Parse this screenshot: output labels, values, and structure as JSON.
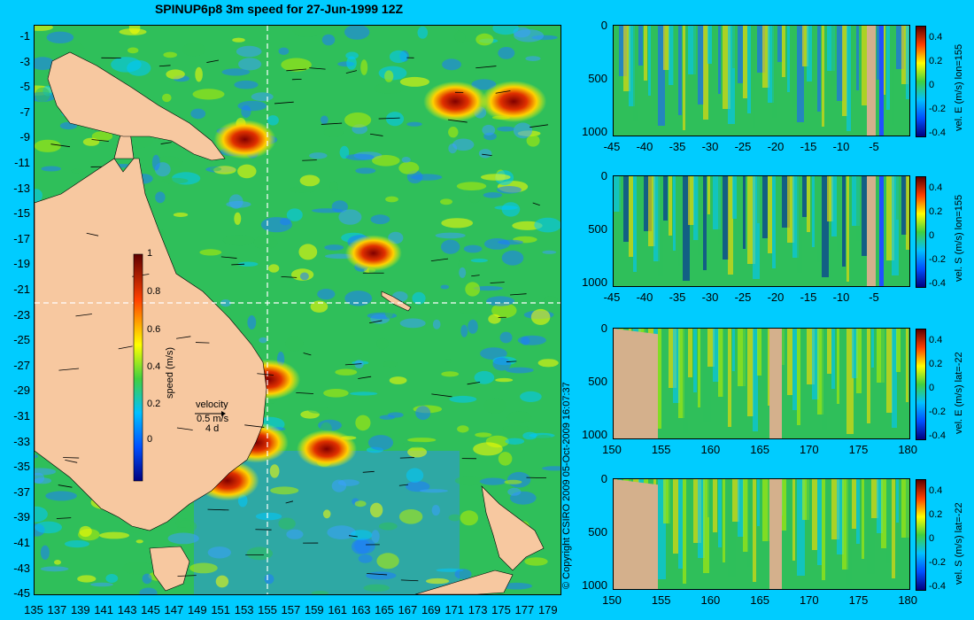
{
  "title": "SPINUP6p8 3m speed for 27-Jun-1999 12Z",
  "copyright": "© Copyright CSIRO 2009   05-Oct-2009 16:07:37",
  "colors": {
    "background": "#00ccff",
    "land": "#f7c8a0",
    "land_sections": "#d4b08c",
    "ocean_base": "#2fbf5a"
  },
  "map": {
    "lat_ticks": [
      "-1",
      "-3",
      "-5",
      "-7",
      "-9",
      "-11",
      "-13",
      "-15",
      "-17",
      "-19",
      "-21",
      "-23",
      "-25",
      "-27",
      "-29",
      "-31",
      "-33",
      "-35",
      "-37",
      "-39",
      "-41",
      "-43",
      "-45"
    ],
    "lon_ticks": [
      "135",
      "137",
      "139",
      "141",
      "143",
      "145",
      "147",
      "149",
      "151",
      "153",
      "155",
      "157",
      "159",
      "161",
      "163",
      "165",
      "167",
      "169",
      "171",
      "173",
      "175",
      "177",
      "179"
    ],
    "colorbar": {
      "label": "speed (m/s)",
      "ticks": [
        "1",
        "0.8",
        "0.6",
        "0.4",
        "0.2",
        "0"
      ]
    },
    "velocity_key": {
      "title": "velocity",
      "speed": "0.5 m/s",
      "duration": "4 d"
    },
    "section_lines": {
      "lon": 155,
      "lat": -22
    }
  },
  "panels": [
    {
      "cbar_label": "vel. E (m/s) lon=155",
      "x_ticks": [
        "-45",
        "-40",
        "-35",
        "-30",
        "-25",
        "-20",
        "-15",
        "-10",
        "-5"
      ],
      "y_ticks": [
        "0",
        "500",
        "1000"
      ],
      "cbar_ticks": [
        "0.4",
        "0.2",
        "0",
        "-0.2",
        "-0.4"
      ]
    },
    {
      "cbar_label": "vel. S (m/s) lon=155",
      "x_ticks": [
        "-45",
        "-40",
        "-35",
        "-30",
        "-25",
        "-20",
        "-15",
        "-10",
        "-5"
      ],
      "y_ticks": [
        "0",
        "500",
        "1000"
      ],
      "cbar_ticks": [
        "0.4",
        "0.2",
        "0",
        "-0.2",
        "-0.4"
      ]
    },
    {
      "cbar_label": "vel. E (m/s) lat=-22",
      "x_ticks": [
        "150",
        "155",
        "160",
        "165",
        "170",
        "175",
        "180"
      ],
      "y_ticks": [
        "0",
        "500",
        "1000"
      ],
      "cbar_ticks": [
        "0.4",
        "0.2",
        "0",
        "-0.2",
        "-0.4"
      ]
    },
    {
      "cbar_label": "vel. S (m/s) lat=-22",
      "x_ticks": [
        "150",
        "155",
        "160",
        "165",
        "170",
        "175",
        "180"
      ],
      "y_ticks": [
        "0",
        "500",
        "1000"
      ],
      "cbar_ticks": [
        "0.4",
        "0.2",
        "0",
        "-0.2",
        "-0.4"
      ]
    }
  ],
  "chart_data": [
    {
      "type": "heatmap",
      "title": "SPINUP6p8 3m speed for 27-Jun-1999 12Z",
      "xlabel": "",
      "ylabel": "",
      "xlim": [
        135,
        180
      ],
      "ylim": [
        -45,
        0
      ],
      "colorbar_label": "speed (m/s)",
      "colorbar_range": [
        0,
        1
      ],
      "features": [
        {
          "lon": 155,
          "lat": -28,
          "speed": 0.9
        },
        {
          "lon": 171,
          "lat": -6,
          "speed": 0.9
        },
        {
          "lon": 176,
          "lat": -6,
          "speed": 0.95
        },
        {
          "lon": 154,
          "lat": -33,
          "speed": 0.9
        },
        {
          "lon": 151.5,
          "lat": -36,
          "speed": 0.9
        },
        {
          "lon": 160,
          "lat": -33.5,
          "speed": 0.8
        },
        {
          "lon": 153,
          "lat": -9,
          "speed": 0.85
        },
        {
          "lon": 164,
          "lat": -18,
          "speed": 0.7
        }
      ]
    },
    {
      "type": "heatmap",
      "xlabel": "",
      "ylabel": "",
      "xlim": [
        -45,
        0
      ],
      "ylim": [
        1050,
        0
      ],
      "colorbar_label": "vel. E (m/s) lon=155",
      "colorbar_range": [
        -0.4,
        0.4
      ]
    },
    {
      "type": "heatmap",
      "xlabel": "",
      "ylabel": "",
      "xlim": [
        -45,
        0
      ],
      "ylim": [
        1050,
        0
      ],
      "colorbar_label": "vel. S (m/s) lon=155",
      "colorbar_range": [
        -0.4,
        0.4
      ]
    },
    {
      "type": "heatmap",
      "xlabel": "",
      "ylabel": "",
      "xlim": [
        150,
        180
      ],
      "ylim": [
        1050,
        0
      ],
      "colorbar_label": "vel. E (m/s) lat=-22",
      "colorbar_range": [
        -0.4,
        0.4
      ]
    },
    {
      "type": "heatmap",
      "xlabel": "",
      "ylabel": "",
      "xlim": [
        150,
        180
      ],
      "ylim": [
        1050,
        0
      ],
      "colorbar_label": "vel. S (m/s) lat=-22",
      "colorbar_range": [
        -0.4,
        0.4
      ]
    }
  ]
}
